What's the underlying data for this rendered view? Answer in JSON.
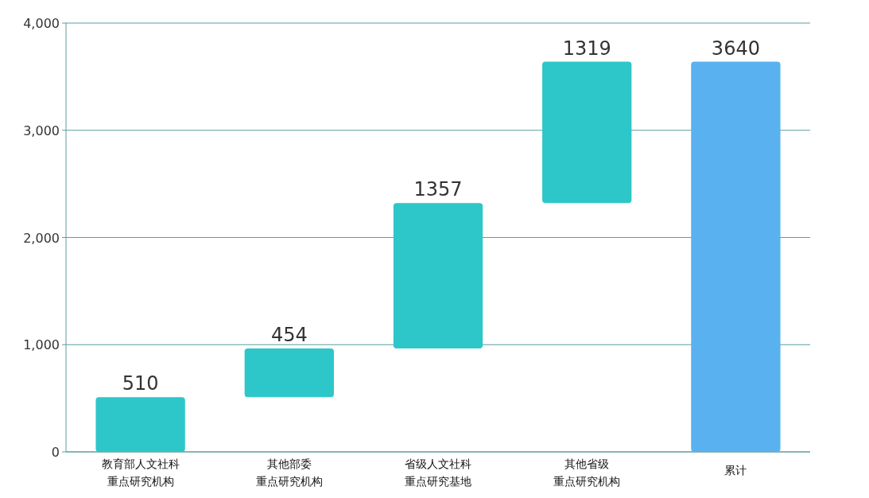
{
  "chart_data": {
    "type": "bar",
    "categories": [
      "教育部人文社科重点研究机构",
      "其他部委重点研究机构",
      "省级人文社科重点研究基地",
      "其他省级重点研究机构",
      "累计"
    ],
    "values": [
      510,
      454,
      1357,
      1319,
      3640
    ],
    "base": [
      0,
      510,
      964,
      2321,
      0
    ],
    "colors": [
      "#2ec7c9",
      "#2ec7c9",
      "#2ec7c9",
      "#2ec7c9",
      "#5ab1ef"
    ],
    "ylim": [
      0,
      4000
    ],
    "yticks": [
      0,
      {
        "value": 1000,
        "label": "1,000"
      },
      {
        "value": 2000,
        "label": "2,000"
      },
      {
        "value": 3000,
        "label": "3,000"
      },
      {
        "value": 4000,
        "label": "4,000"
      }
    ],
    "grid": "y",
    "data_labels": true
  }
}
